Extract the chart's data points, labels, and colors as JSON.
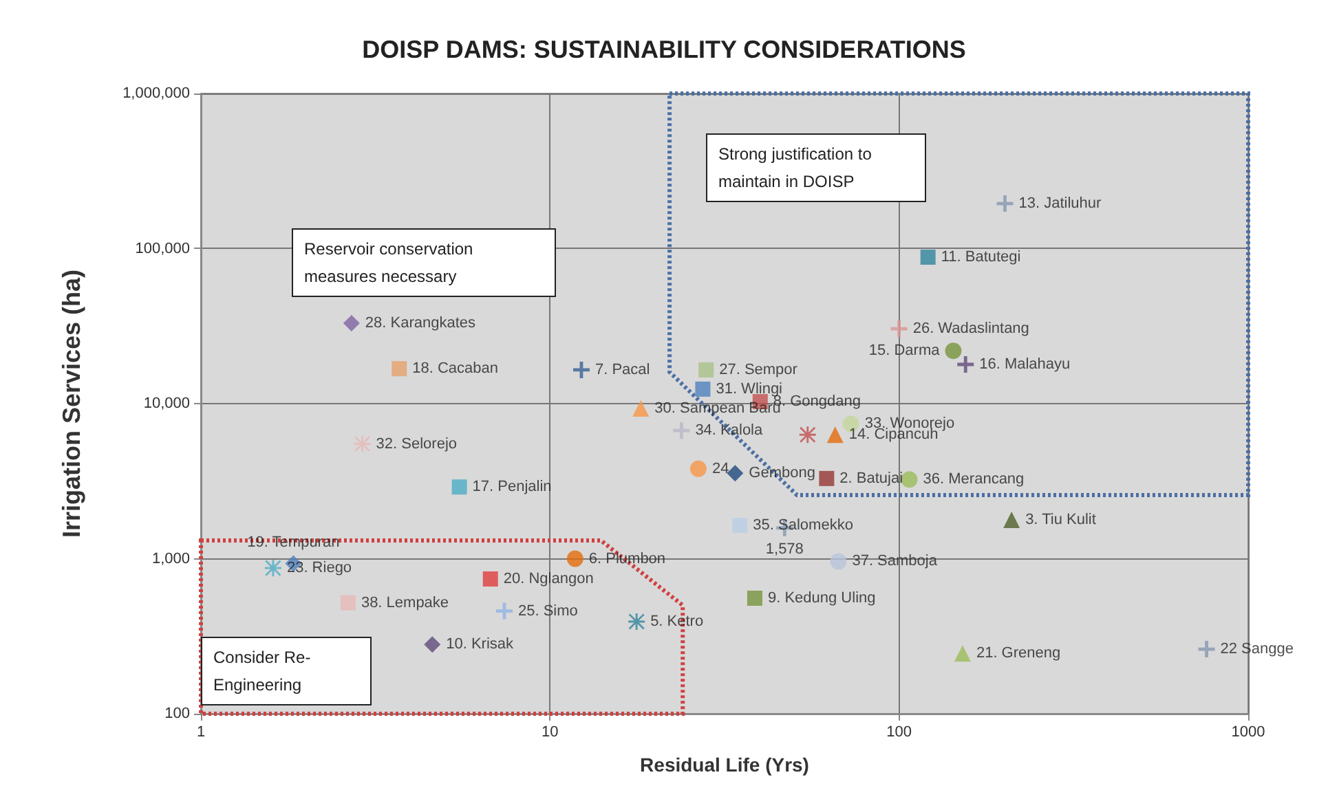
{
  "chart_data": {
    "type": "scatter",
    "title": "DOISP DAMS: SUSTAINABILITY CONSIDERATIONS",
    "xlabel": "Residual Life (Yrs)",
    "ylabel": "Irrigation Services (ha)",
    "log": "xy",
    "xlim": [
      1,
      1000
    ],
    "xticks": [
      1,
      10,
      100,
      1000
    ],
    "ylim": [
      100,
      1000000
    ],
    "yticks": [
      100,
      {
        "value": 1000,
        "label": "1,000"
      },
      {
        "value": 10000,
        "label": "10,000"
      },
      {
        "value": 100000,
        "label": "100,000"
      },
      {
        "value": 1000000,
        "label": "1,000,000"
      }
    ],
    "grid": true,
    "legend": false,
    "annotations": [
      "Strong justification to maintain in DOISP",
      "Reservoir conservation measures necessary",
      "Consider Re-Engineering"
    ],
    "series": [
      {
        "name": "13. Jatiluhur",
        "color": "#8497b0",
        "marker": "cross",
        "x": [
          201
        ],
        "values": [
          195000
        ]
      },
      {
        "name": "11. Batutegi",
        "color": "#31859c",
        "marker": "square",
        "x": [
          121
        ],
        "values": [
          88000
        ]
      },
      {
        "name": "26. Wadaslintang",
        "color": "#d99694",
        "marker": "cross",
        "x": [
          100
        ],
        "values": [
          30400
        ]
      },
      {
        "name": "15. Darma",
        "color": "#77933c",
        "marker": "circle",
        "x": [
          143
        ],
        "values": [
          21900
        ]
      },
      {
        "name": "16. Malahayu",
        "color": "#604a7b",
        "marker": "cross",
        "x": [
          155
        ],
        "values": [
          17900
        ]
      },
      {
        "name": "27. Sempor",
        "color": "#a9c08a",
        "marker": "square",
        "x": [
          28
        ],
        "values": [
          16500
        ]
      },
      {
        "name": "7. Pacal",
        "color": "#366092",
        "marker": "cross",
        "x": [
          12.3
        ],
        "values": [
          16500
        ]
      },
      {
        "name": "18. Cacaban",
        "color": "#e6a06a",
        "marker": "square",
        "x": [
          3.7
        ],
        "values": [
          16800
        ]
      },
      {
        "name": "28. Karangkates",
        "color": "#8064a2",
        "marker": "diamond",
        "x": [
          2.7
        ],
        "values": [
          33000
        ]
      },
      {
        "name": "31. Wlingi",
        "color": "#4f81bd",
        "marker": "square",
        "x": [
          27.4
        ],
        "values": [
          12400
        ]
      },
      {
        "name": "8. Gongdang",
        "color": "#c0504d",
        "marker": "square",
        "x": [
          40
        ],
        "values": [
          10300
        ]
      },
      {
        "name": "30. Sampean Baru",
        "color": "#f79646",
        "marker": "triangle",
        "x": [
          18.2
        ],
        "values": [
          9300
        ]
      },
      {
        "name": "34. Kalola",
        "color": "#b7b7c8",
        "marker": "cross",
        "x": [
          23.8
        ],
        "values": [
          6700
        ]
      },
      {
        "name": "32. Selorejo",
        "color": "#e6b9b8",
        "marker": "star",
        "x": [
          2.9
        ],
        "values": [
          5500
        ]
      },
      {
        "name": "17. Penjalin",
        "color": "#4bacc6",
        "marker": "square",
        "x": [
          5.5
        ],
        "values": [
          2900
        ]
      },
      {
        "color": "#c0504d",
        "marker": "star",
        "x": [
          54.7
        ],
        "values": [
          6300
        ]
      },
      {
        "name": "14. Cipancuh",
        "color": "#e46c0a",
        "marker": "triangle",
        "x": [
          65.6
        ],
        "values": [
          6300
        ]
      },
      {
        "name": "33. Wonorejo",
        "color": "#c3d69b",
        "marker": "circle",
        "x": [
          72.8
        ],
        "values": [
          7400
        ]
      },
      {
        "name": "24",
        "color": "#f79646",
        "marker": "circle",
        "x": [
          26.6
        ],
        "values": [
          3800
        ]
      },
      {
        "name": "Gembong",
        "color": "#1f497d",
        "marker": "diamond",
        "x": [
          33.9
        ],
        "values": [
          3560
        ]
      },
      {
        "name": "2. Batujai",
        "color": "#953735",
        "marker": "square",
        "x": [
          62
        ],
        "values": [
          3290
        ]
      },
      {
        "name": "36. Merancang",
        "color": "#9bbb59",
        "marker": "circle",
        "x": [
          107
        ],
        "values": [
          3240
        ]
      },
      {
        "name": "3. Tiu Kulit",
        "color": "#4f6228",
        "marker": "triangle",
        "x": [
          210
        ],
        "values": [
          1780
        ]
      },
      {
        "name": "35. Salomekko",
        "color": "#b9cde5",
        "marker": "square",
        "x": [
          35
        ],
        "values": [
          1640
        ]
      },
      {
        "color": "#8497b0",
        "marker": "cross",
        "x": [
          47
        ],
        "values": [
          1578
        ],
        "value_labels": [
          "1,578"
        ]
      },
      {
        "name": "37. Samboja",
        "color": "#b9c4dc",
        "marker": "circle",
        "x": [
          67
        ],
        "values": [
          960
        ]
      },
      {
        "name": "6. Plumbon",
        "color": "#e46c0a",
        "marker": "circle",
        "x": [
          11.8
        ],
        "values": [
          1000
        ]
      },
      {
        "name": "9. Kedung Uling",
        "color": "#77933c",
        "marker": "square",
        "x": [
          38.6
        ],
        "values": [
          556
        ]
      },
      {
        "name": "5. Ketro",
        "color": "#31859c",
        "marker": "star",
        "x": [
          17.7
        ],
        "values": [
          393
        ]
      },
      {
        "name": "21. Greneng",
        "color": "#9bbb59",
        "marker": "triangle",
        "x": [
          152
        ],
        "values": [
          245
        ]
      },
      {
        "name": "22 Sangge",
        "color": "#8497b0",
        "marker": "cross",
        "x": [
          760
        ],
        "values": [
          261
        ]
      },
      {
        "name": "19. Tempuran",
        "color": "#4f81bd",
        "marker": "diamond",
        "x": [
          1.84
        ],
        "values": [
          930
        ]
      },
      {
        "name": "23. Riego",
        "color": "#4bacc6",
        "marker": "star",
        "x": [
          1.61
        ],
        "values": [
          870
        ]
      },
      {
        "name": "20. Nglangon",
        "color": "#e03c3c",
        "marker": "square",
        "x": [
          6.75
        ],
        "values": [
          740
        ]
      },
      {
        "name": "38. Lempake",
        "color": "#e6b9b8",
        "marker": "square",
        "x": [
          2.64
        ],
        "values": [
          520
        ]
      },
      {
        "name": "25. Simo",
        "color": "#8eb4e3",
        "marker": "cross",
        "x": [
          7.4
        ],
        "values": [
          460
        ]
      },
      {
        "name": "10. Krisak",
        "color": "#604a7b",
        "marker": "diamond",
        "x": [
          4.6
        ],
        "values": [
          280
        ]
      }
    ]
  }
}
